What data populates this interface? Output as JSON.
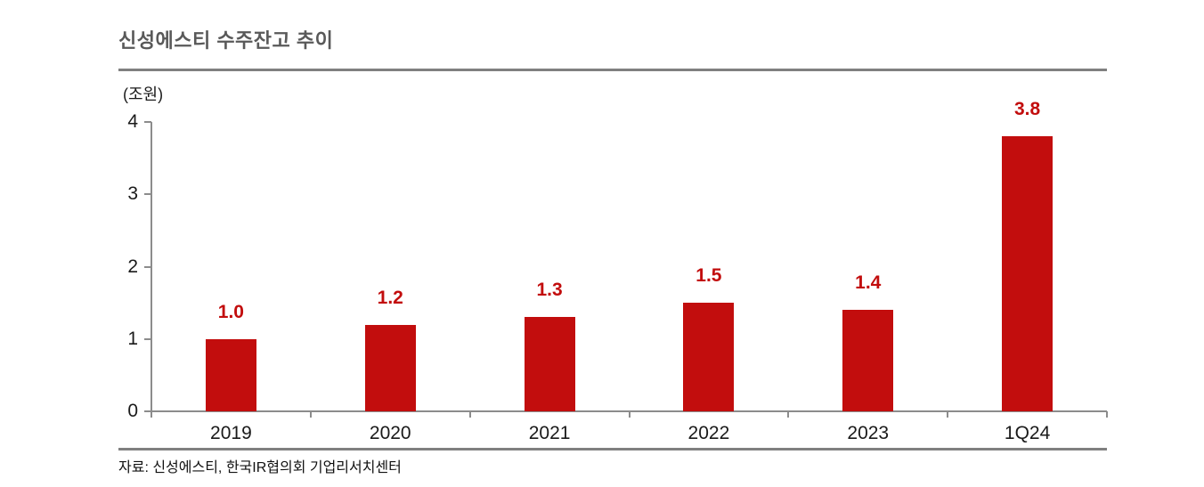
{
  "chart": {
    "title": "신성에스티 수주잔고 추이",
    "unit_label": "(조원)",
    "source": "자료: 신성에스티, 한국IR협의회 기업리서치센터"
  },
  "chart_data": {
    "type": "bar",
    "title": "신성에스티 수주잔고 추이",
    "unit": "조원",
    "categories": [
      "2019",
      "2020",
      "2021",
      "2022",
      "2023",
      "1Q24"
    ],
    "values": [
      1.0,
      1.2,
      1.3,
      1.5,
      1.4,
      3.8
    ],
    "data_labels": [
      "1.0",
      "1.2",
      "1.3",
      "1.5",
      "1.4",
      "3.8"
    ],
    "xlabel": "",
    "ylabel": "(조원)",
    "ylim": [
      0,
      4
    ],
    "y_ticks": [
      0,
      1,
      2,
      3,
      4
    ],
    "grid": false,
    "legend": false,
    "bar_color": "#c20d0d",
    "data_label_color": "#c20d0d",
    "axis_color": "#8c8c8c",
    "tick_label_color": "#1a1a1a",
    "title_color": "#595959",
    "source": "자료: 신성에스티, 한국IR협의회 기업리서치센터"
  }
}
